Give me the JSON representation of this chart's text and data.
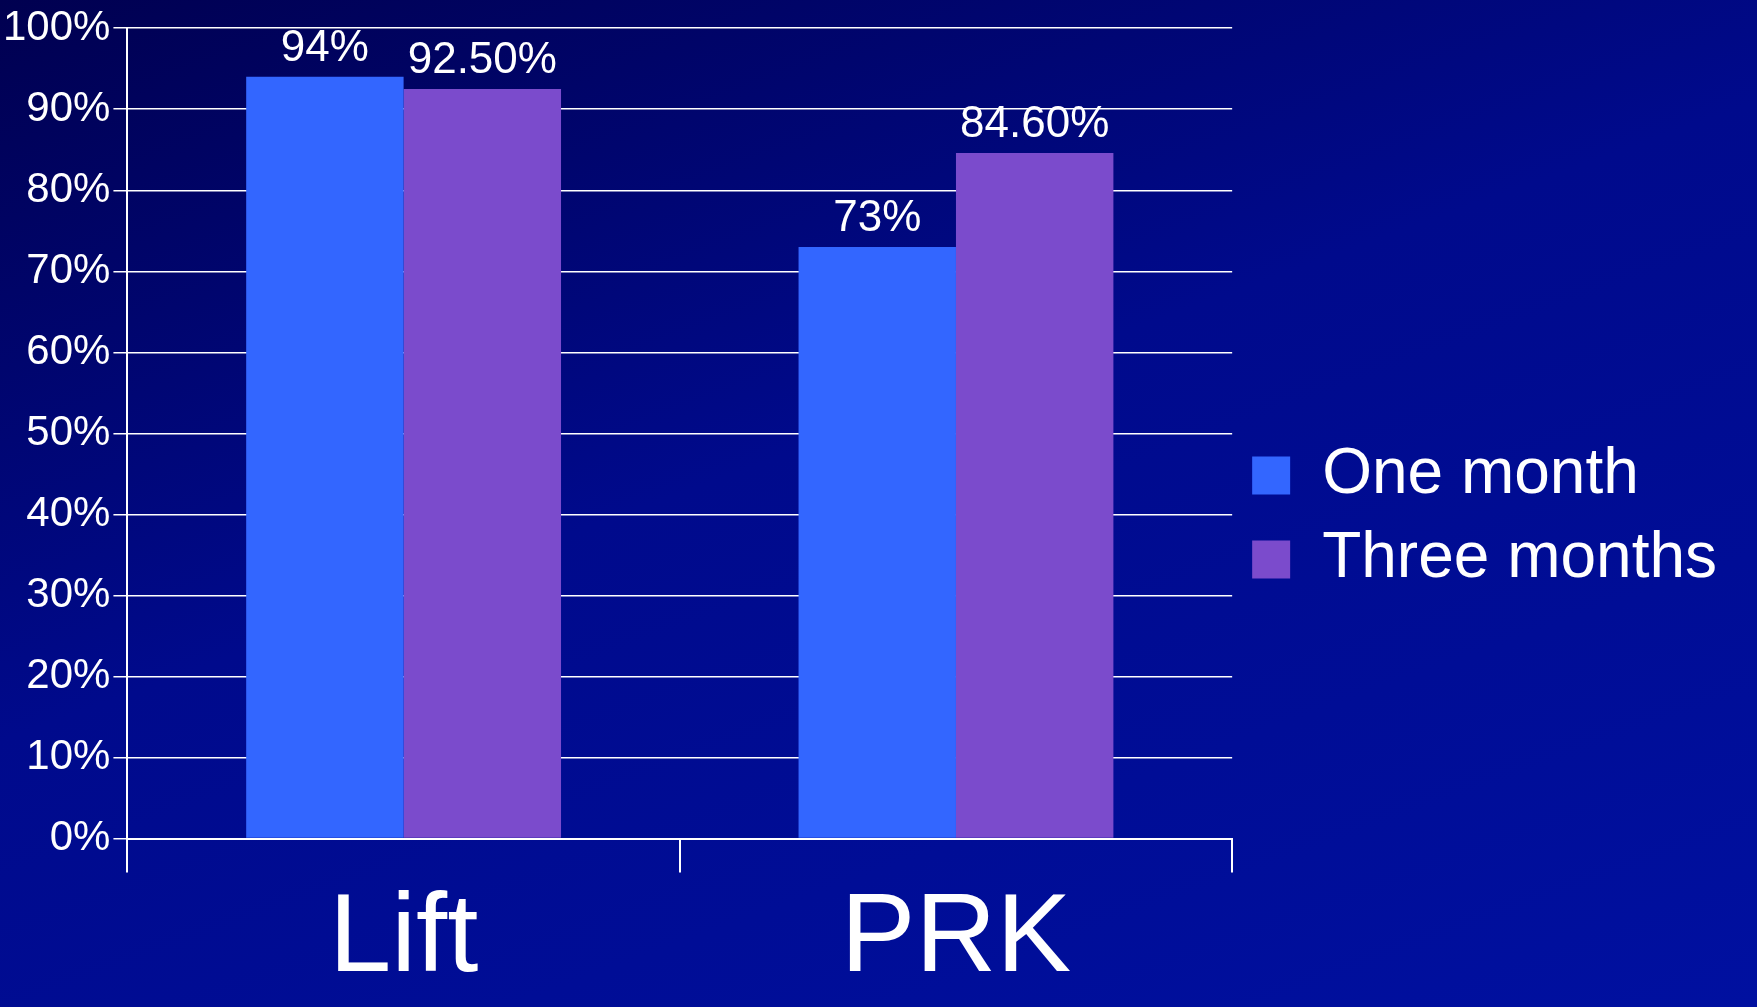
{
  "chart_data": {
    "type": "bar",
    "categories": [
      "Lift",
      "PRK"
    ],
    "series": [
      {
        "name": "One month",
        "color": "#3366ff",
        "values": [
          94,
          73
        ],
        "value_labels": [
          "94%",
          "73%"
        ]
      },
      {
        "name": "Three months",
        "color": "#7b4bcc",
        "values": [
          92.5,
          84.6
        ],
        "value_labels": [
          "92.50%",
          "84.60%"
        ]
      }
    ],
    "ylim": [
      0,
      100
    ],
    "yticks": [
      {
        "value": 0,
        "label": "0%"
      },
      {
        "value": 10,
        "label": "10%"
      },
      {
        "value": 20,
        "label": "20%"
      },
      {
        "value": 30,
        "label": "30%"
      },
      {
        "value": 40,
        "label": "40%"
      },
      {
        "value": 50,
        "label": "50%"
      },
      {
        "value": 60,
        "label": "60%"
      },
      {
        "value": 70,
        "label": "70%"
      },
      {
        "value": 80,
        "label": "80%"
      },
      {
        "value": 90,
        "label": "90%"
      },
      {
        "value": 100,
        "label": "100%"
      }
    ],
    "grid": "y",
    "legend": "right"
  }
}
